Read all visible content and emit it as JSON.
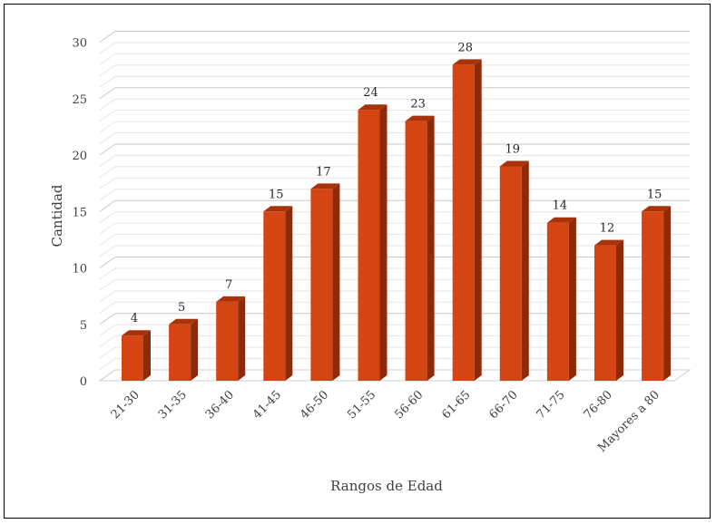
{
  "chart_data": {
    "type": "bar",
    "style": "3d-column",
    "xlabel": "Rangos de Edad",
    "ylabel": "Cantidad",
    "ylim": [
      0,
      30
    ],
    "yticks": [
      0,
      5,
      10,
      15,
      20,
      25,
      30
    ],
    "categories": [
      "21-30",
      "31-35",
      "36-40",
      "41-45",
      "46-50",
      "51-55",
      "56-60",
      "61-65",
      "66-70",
      "71-75",
      "76-80",
      "Mayores a 80"
    ],
    "values": [
      4,
      5,
      7,
      15,
      17,
      24,
      23,
      28,
      19,
      14,
      12,
      15
    ],
    "data_labels": true,
    "grid": true,
    "legend": "none",
    "colors": {
      "bar_front": "#D44513",
      "bar_side": "#8F2A08",
      "bar_top": "#A8330B",
      "grid": "#D9D9D9"
    }
  }
}
